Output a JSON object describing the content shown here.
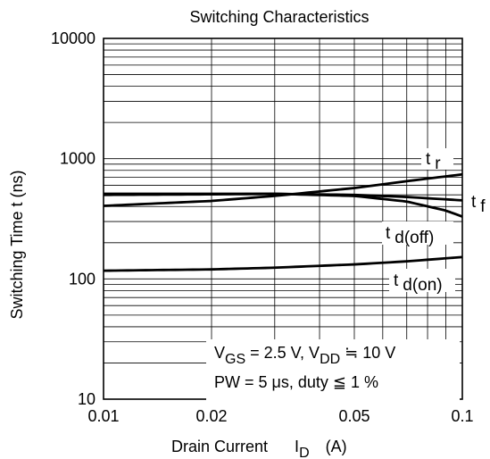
{
  "chart_data": {
    "type": "line",
    "title": "Switching Characteristics",
    "xlabel": {
      "main": "Drain Current",
      "symbol": "I",
      "subscript": "D",
      "unit": "(A)"
    },
    "ylabel": "Switching Time  t  (ns)",
    "x_scale": "log",
    "y_scale": "log",
    "xlim": [
      0.01,
      0.1
    ],
    "ylim": [
      10,
      10000
    ],
    "x_ticks": [
      0.01,
      0.02,
      0.05,
      0.1
    ],
    "x_tick_labels": [
      "0.01",
      "0.02",
      "0.05",
      "0.1"
    ],
    "y_ticks": [
      10,
      100,
      1000,
      10000
    ],
    "y_tick_labels": [
      "10",
      "100",
      "1000",
      "10000"
    ],
    "grid": true,
    "series": [
      {
        "name": "tr",
        "label_main": "t",
        "label_sub": "r",
        "x": [
          0.01,
          0.02,
          0.03,
          0.05,
          0.07,
          0.1
        ],
        "y": [
          405,
          445,
          490,
          570,
          650,
          740
        ]
      },
      {
        "name": "tf",
        "label_main": "t",
        "label_sub": "f",
        "x": [
          0.01,
          0.02,
          0.03,
          0.05,
          0.07,
          0.1
        ],
        "y": [
          500,
          505,
          510,
          500,
          480,
          450
        ]
      },
      {
        "name": "td(off)",
        "label_main": "t",
        "label_sub": "d(off)",
        "x": [
          0.01,
          0.02,
          0.03,
          0.05,
          0.07,
          0.09,
          0.1
        ],
        "y": [
          510,
          510,
          510,
          490,
          440,
          370,
          330
        ]
      },
      {
        "name": "td(on)",
        "label_main": "t",
        "label_sub": "d(on)",
        "x": [
          0.01,
          0.02,
          0.03,
          0.05,
          0.07,
          0.1
        ],
        "y": [
          117,
          120,
          124,
          132,
          140,
          152
        ]
      }
    ],
    "conditions": {
      "line1": {
        "vgs_sym": "V",
        "vgs_sub": "GS",
        "vgs_val": " = 2.5 V, ",
        "vdd_sym": "V",
        "vdd_sub": "DD",
        "vdd_val": " ≒ 10 V"
      },
      "line2": "PW = 5 μs, duty ≦ 1 %"
    },
    "colors": {
      "line": "#000000",
      "grid": "#000000",
      "background": "#ffffff"
    }
  }
}
